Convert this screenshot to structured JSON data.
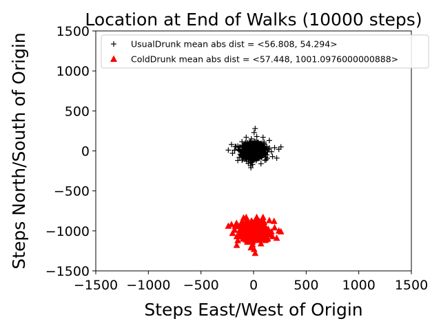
{
  "chart_data": {
    "type": "scatter",
    "title": "Location at End of Walks (10000 steps)",
    "xlabel": "Steps East/West of Origin",
    "ylabel": "Steps North/South of Origin",
    "xlim": [
      -1500,
      1500
    ],
    "ylim": [
      -1500,
      1500
    ],
    "xticks": [
      "−1500",
      "−1000",
      "−500",
      "0",
      "500",
      "1000",
      "1500"
    ],
    "yticks": [
      "−1500",
      "−1000",
      "−500",
      "0",
      "500",
      "1000",
      "1500"
    ],
    "xtick_values": [
      -1500,
      -1000,
      -500,
      0,
      500,
      1000,
      1500
    ],
    "ytick_values": [
      -1500,
      -1000,
      -500,
      0,
      500,
      1000,
      1500
    ],
    "grid": false,
    "legend_position": "top-right",
    "series": [
      {
        "name": "UsualDrunk mean abs dist = <56.808, 54.294>",
        "marker": "plus",
        "color": "#000000",
        "center": [
          0,
          0
        ],
        "points": [
          [
            0,
            0
          ],
          [
            20,
            10
          ],
          [
            -30,
            15
          ],
          [
            45,
            -20
          ],
          [
            -60,
            -10
          ],
          [
            80,
            30
          ],
          [
            -90,
            40
          ],
          [
            110,
            -35
          ],
          [
            -120,
            -50
          ],
          [
            140,
            20
          ],
          [
            -150,
            60
          ],
          [
            60,
            90
          ],
          [
            -40,
            -90
          ],
          [
            10,
            120
          ],
          [
            -20,
            -140
          ],
          [
            170,
            -10
          ],
          [
            -180,
            10
          ],
          [
            30,
            180
          ],
          [
            -10,
            -170
          ],
          [
            100,
            110
          ],
          [
            -100,
            -100
          ],
          [
            120,
            -110
          ],
          [
            -110,
            115
          ],
          [
            200,
            40
          ],
          [
            -200,
            -30
          ],
          [
            260,
            50
          ],
          [
            240,
            20
          ],
          [
            -240,
            10
          ],
          [
            220,
            -90
          ],
          [
            -210,
            80
          ],
          [
            15,
            280
          ],
          [
            -25,
            -210
          ],
          [
            70,
            -160
          ],
          [
            -70,
            170
          ],
          [
            150,
            130
          ],
          [
            -150,
            -120
          ],
          [
            5,
            230
          ],
          [
            40,
            60
          ],
          [
            -55,
            35
          ],
          [
            85,
            -55
          ],
          [
            -85,
            -75
          ],
          [
            130,
            5
          ],
          [
            -130,
            0
          ],
          [
            25,
            -60
          ],
          [
            -15,
            75
          ],
          [
            65,
            45
          ],
          [
            -65,
            -45
          ],
          [
            180,
            -70
          ],
          [
            -175,
            55
          ],
          [
            90,
            170
          ]
        ]
      },
      {
        "name": "ColdDrunk mean abs dist = <57.448, 1001.0976000000888>",
        "marker": "triangle",
        "color": "#ff0000",
        "center": [
          0,
          -1001
        ],
        "points": [
          [
            0,
            -1000
          ],
          [
            20,
            -990
          ],
          [
            -30,
            -985
          ],
          [
            45,
            -1020
          ],
          [
            -60,
            -1010
          ],
          [
            80,
            -970
          ],
          [
            -90,
            -960
          ],
          [
            110,
            -1035
          ],
          [
            -120,
            -1050
          ],
          [
            140,
            -980
          ],
          [
            -150,
            -940
          ],
          [
            60,
            -910
          ],
          [
            -40,
            -1090
          ],
          [
            10,
            -880
          ],
          [
            -20,
            -1140
          ],
          [
            170,
            -1010
          ],
          [
            -180,
            -990
          ],
          [
            30,
            -830
          ],
          [
            -10,
            -1170
          ],
          [
            100,
            -890
          ],
          [
            -100,
            -1100
          ],
          [
            120,
            -1110
          ],
          [
            -110,
            -885
          ],
          [
            200,
            -960
          ],
          [
            -200,
            -1030
          ],
          [
            260,
            -1010
          ],
          [
            240,
            -1000
          ],
          [
            -240,
            -940
          ],
          [
            220,
            -1090
          ],
          [
            -210,
            -920
          ],
          [
            15,
            -1280
          ],
          [
            -25,
            -1210
          ],
          [
            70,
            -1160
          ],
          [
            -70,
            -830
          ],
          [
            150,
            -870
          ],
          [
            -150,
            -1120
          ],
          [
            5,
            -1230
          ],
          [
            40,
            -940
          ],
          [
            -55,
            -965
          ],
          [
            85,
            -1055
          ],
          [
            -85,
            -1075
          ],
          [
            130,
            -995
          ],
          [
            -130,
            -1000
          ],
          [
            25,
            -1060
          ],
          [
            -15,
            -925
          ],
          [
            65,
            -955
          ],
          [
            -65,
            -1045
          ],
          [
            180,
            -1070
          ],
          [
            -175,
            -945
          ],
          [
            90,
            -830
          ],
          [
            195,
            -880
          ],
          [
            -160,
            -1180
          ]
        ]
      }
    ]
  }
}
